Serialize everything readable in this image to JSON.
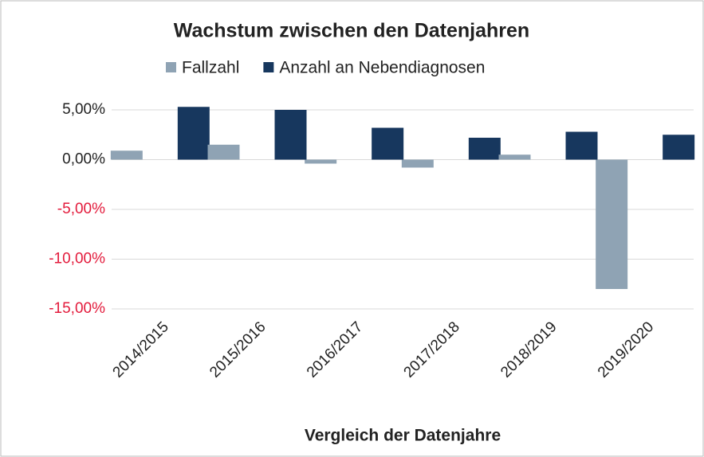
{
  "chart_data": {
    "type": "bar",
    "title": "Wachstum zwischen den Datenjahren",
    "x_label": "Vergleich der Datenjahre",
    "categories": [
      "2014/2015",
      "2015/2016",
      "2016/2017",
      "2017/2018",
      "2018/2019",
      "2019/2020"
    ],
    "series": [
      {
        "name": "Fallzahl",
        "color": "#8fa3b4",
        "values": [
          0.9,
          1.5,
          -0.4,
          -0.8,
          0.5,
          -13.0
        ]
      },
      {
        "name": "Anzahl an Nebendiagnosen",
        "color": "#17375e",
        "values": [
          5.3,
          5.0,
          3.2,
          2.2,
          2.8,
          2.5
        ]
      }
    ],
    "ylim": [
      -15,
      5.5
    ],
    "yticks": [
      {
        "value": 5,
        "label": "5,00%"
      },
      {
        "value": 0,
        "label": "0,00%"
      },
      {
        "value": -5,
        "label": "-5,00%"
      },
      {
        "value": -10,
        "label": "-10,00%"
      },
      {
        "value": -15,
        "label": "-15,00%"
      }
    ],
    "negative_tick_color": "#e31b3c",
    "grid": true,
    "legend": "top"
  }
}
